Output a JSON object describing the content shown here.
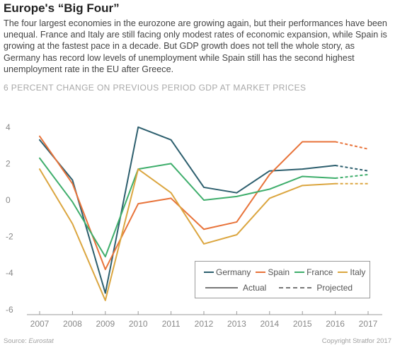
{
  "heading": "Europe's “Big Four”",
  "description": "The four largest economies in the eurozone are growing again, but their performances have been unequal. France and Italy are still facing only modest rates of economic expansion, while Spain is growing at the fastest pace in a decade. But GDP growth does not tell the whole story, as Germany has record low levels of unemployment while Spain still has the second highest unemployment rate in the EU after Greece.",
  "footer": {
    "source_label": "Source:",
    "source_name": "Eurostat",
    "copyright": "Copyright Stratfor 2017"
  },
  "chart_data": {
    "type": "line",
    "title": "",
    "ylabel_top": "6 PERCENT CHANGE ON PREVIOUS PERIOD GDP AT MARKET PRICES",
    "xlabel": "",
    "x": [
      "2007",
      "2008",
      "2009",
      "2010",
      "2011",
      "2012",
      "2013",
      "2014",
      "2015",
      "2016",
      "2017"
    ],
    "yticks": [
      -6,
      -4,
      -2,
      0,
      2,
      4
    ],
    "ylim": [
      -6,
      6
    ],
    "grid": false,
    "legend_position": "bottom-right",
    "projected_from": "2016",
    "series": [
      {
        "name": "Germany",
        "color": "#2d5f6e",
        "values": [
          3.3,
          1.1,
          -5.1,
          4.0,
          3.3,
          0.7,
          0.4,
          1.6,
          1.7,
          1.9,
          1.6
        ]
      },
      {
        "name": "Spain",
        "color": "#e8733a",
        "values": [
          3.5,
          0.9,
          -3.8,
          -0.2,
          0.1,
          -1.6,
          -1.2,
          1.4,
          3.2,
          3.2,
          2.8
        ]
      },
      {
        "name": "France",
        "color": "#3fae6c",
        "values": [
          2.3,
          -0.1,
          -3.1,
          1.7,
          2.0,
          0.0,
          0.2,
          0.6,
          1.3,
          1.2,
          1.4
        ]
      },
      {
        "name": "Italy",
        "color": "#dba640",
        "values": [
          1.7,
          -1.3,
          -5.5,
          1.7,
          0.4,
          -2.4,
          -1.9,
          0.1,
          0.8,
          0.9,
          0.9
        ]
      }
    ],
    "line_styles": [
      {
        "label": "Actual",
        "style": "solid"
      },
      {
        "label": "Projected",
        "style": "dashed"
      }
    ]
  }
}
